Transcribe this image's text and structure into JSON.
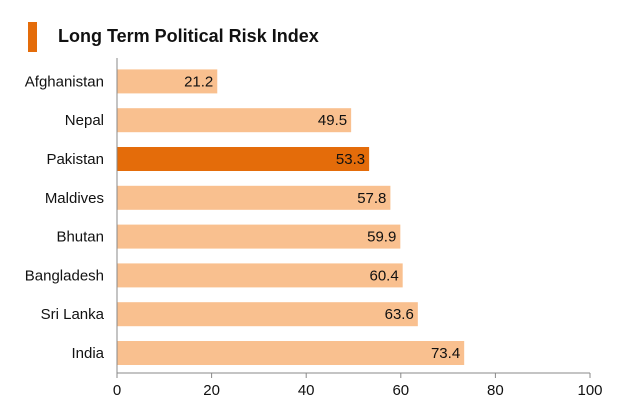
{
  "chart_data": {
    "type": "bar",
    "orientation": "horizontal",
    "title": "Long Term Political Risk Index",
    "categories": [
      "Afghanistan",
      "Nepal",
      "Pakistan",
      "Maldives",
      "Bhutan",
      "Bangladesh",
      "Sri Lanka",
      "India"
    ],
    "values": [
      21.2,
      49.5,
      53.3,
      57.8,
      59.9,
      60.4,
      63.6,
      73.4
    ],
    "value_labels": [
      "21.2",
      "49.5",
      "53.3",
      "57.8",
      "59.9",
      "60.4",
      "63.6",
      "73.4"
    ],
    "highlight_category": "Pakistan",
    "xlim": [
      0,
      100
    ],
    "xticks": [
      0,
      20,
      40,
      60,
      80,
      100
    ],
    "xtick_labels": [
      "0",
      "20",
      "40",
      "60",
      "80",
      "100"
    ],
    "grid": false,
    "colors": {
      "bar": "#f9c08f",
      "highlight": "#e46c0a",
      "accent": "#e46c0a",
      "axis": "#888888"
    }
  }
}
